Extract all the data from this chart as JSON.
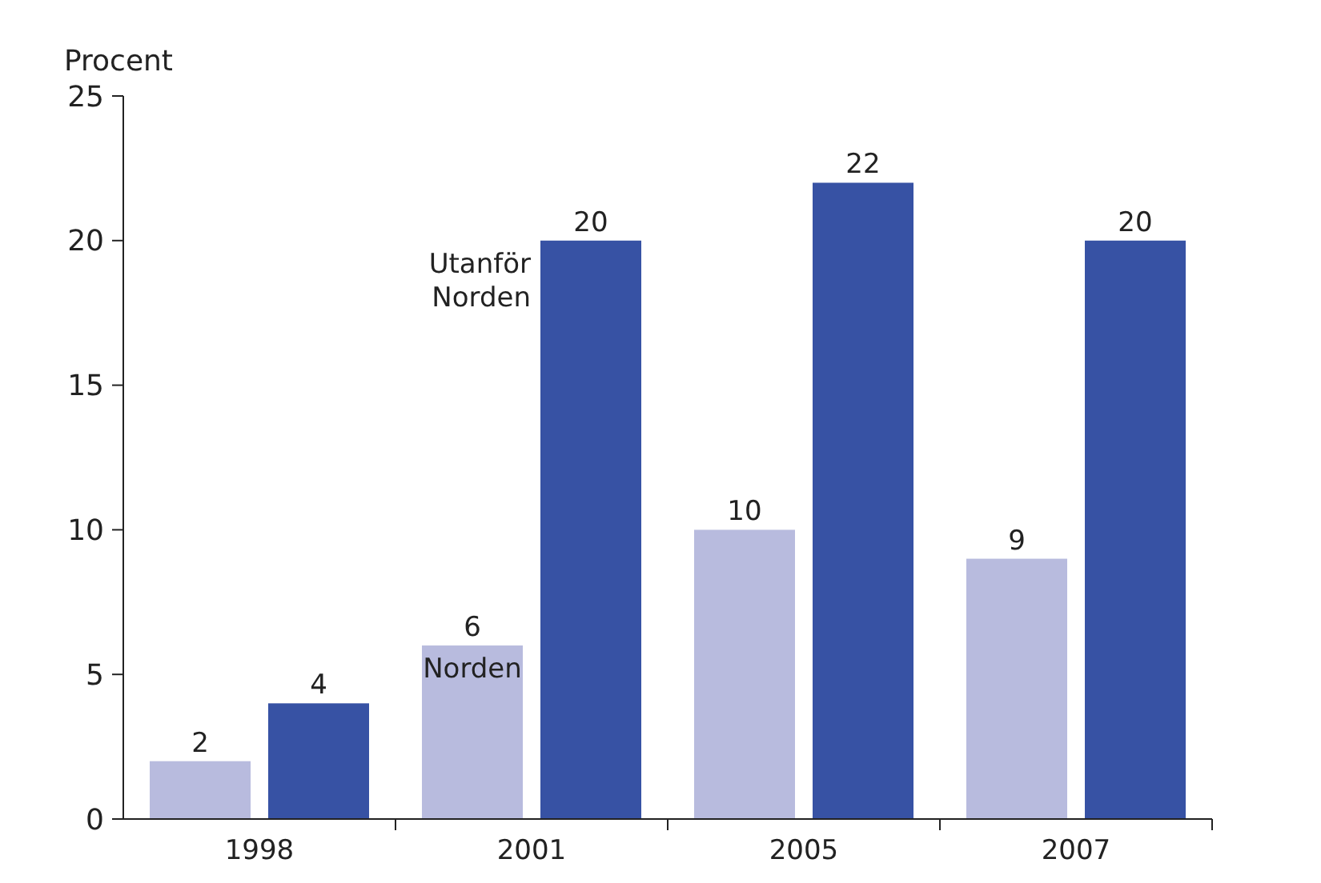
{
  "chart_data": {
    "type": "bar",
    "ylabel": "Procent",
    "categories": [
      "1998",
      "2001",
      "2005",
      "2007"
    ],
    "series": [
      {
        "name": "Norden",
        "color": "#b8bbde",
        "values": [
          2,
          6,
          10,
          9
        ]
      },
      {
        "name": "Utanför Norden",
        "color": "#3752a4",
        "values": [
          4,
          20,
          22,
          20
        ]
      }
    ],
    "ylim": [
      0,
      25
    ],
    "yticks": [
      0,
      5,
      10,
      15,
      20,
      25
    ],
    "data_labels": true,
    "legend": false,
    "grid": false
  }
}
